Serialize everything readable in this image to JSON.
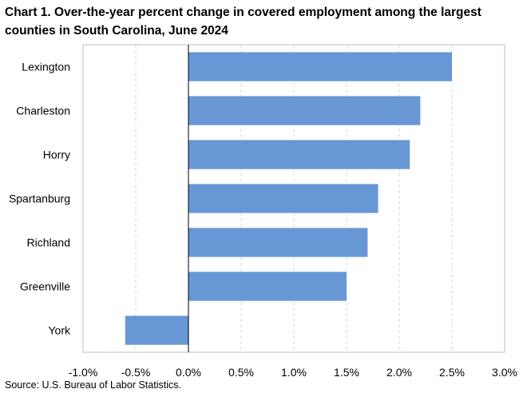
{
  "title": "Chart 1. Over-the-year percent change in covered employment among the largest counties in South Carolina, June 2024",
  "source": "Source: U.S. Bureau of Labor Statistics.",
  "chart_data": {
    "type": "bar",
    "orientation": "horizontal",
    "title": "Chart 1. Over-the-year percent change in covered employment among the largest counties in South Carolina, June 2024",
    "categories": [
      "Lexington",
      "Charleston",
      "Horry",
      "Spartanburg",
      "Richland",
      "Greenville",
      "York"
    ],
    "values": [
      2.5,
      2.2,
      2.1,
      1.8,
      1.7,
      1.5,
      -0.6
    ],
    "unit": "%",
    "xlim": [
      -1.0,
      3.0
    ],
    "xticks": [
      -1.0,
      -0.5,
      0.0,
      0.5,
      1.0,
      1.5,
      2.0,
      2.5,
      3.0
    ],
    "tick_labels": [
      "-1.0%",
      "-0.5%",
      "0.0%",
      "0.5%",
      "1.0%",
      "1.5%",
      "2.0%",
      "2.5%",
      "3.0%"
    ],
    "grid": "vertical dashed",
    "bar_color": "#6897D6",
    "legend": "none"
  }
}
